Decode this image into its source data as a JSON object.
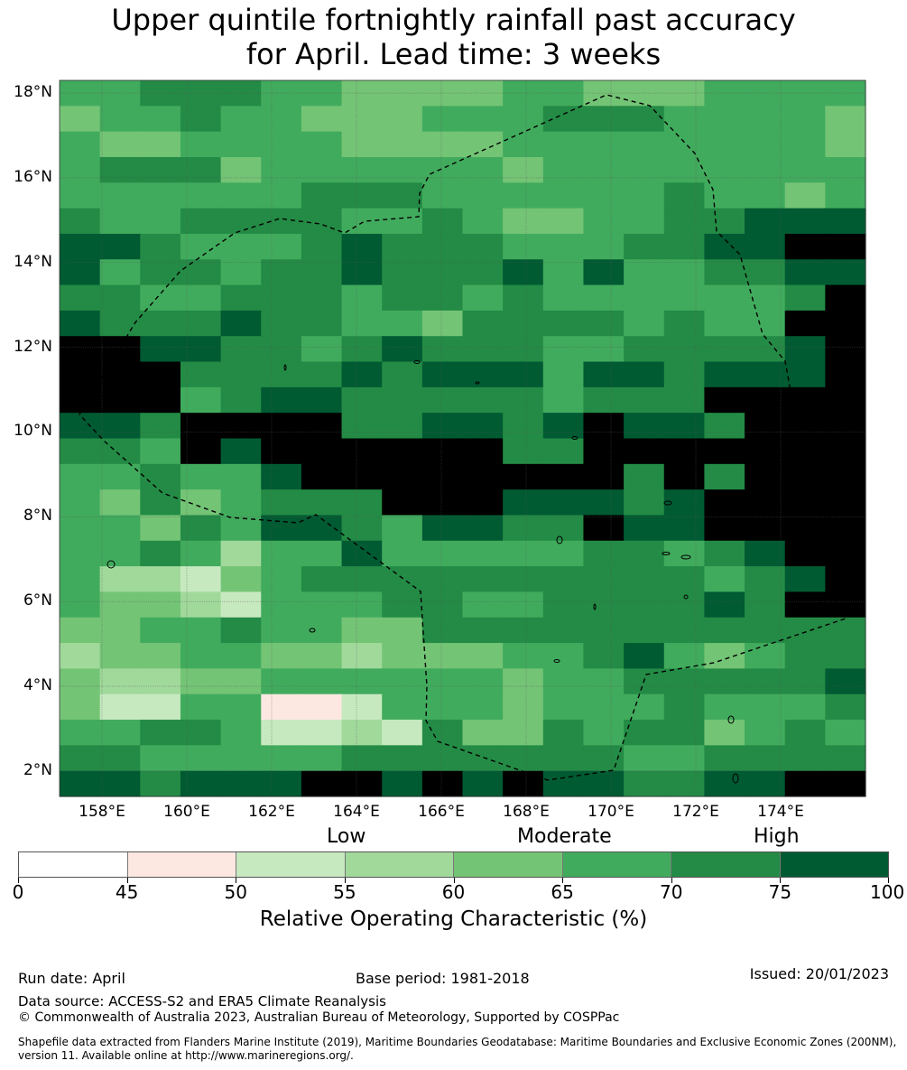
{
  "title": {
    "line1": "Upper quintile fortnightly rainfall past accuracy",
    "line2": "for April. Lead time: 3 weeks"
  },
  "map": {
    "lat_labels": [
      "18°N",
      "16°N",
      "14°N",
      "12°N",
      "10°N",
      "8°N",
      "6°N",
      "4°N",
      "2°N"
    ],
    "lon_labels": [
      "158°E",
      "160°E",
      "162°E",
      "164°E",
      "166°E",
      "168°E",
      "170°E",
      "172°E",
      "174°E"
    ],
    "lat_range": [
      1.4,
      18.3
    ],
    "lon_range": [
      157.0,
      176.0
    ],
    "grid_rows": [
      "55666554444554445555",
      "45565544455566655554",
      "54455554444555555554",
      "56664555555455555555",
      "55555566655555565545",
      "65566665565445566777",
      "77655567666555667788",
      "75665667666757556677",
      "66556665665655555568",
      "76667665546666565588",
      "88776656766655666678",
      "88866667677757767778",
      "88856776666656668888",
      "77688886677678776888",
      "66587888888668888888",
      "55655788888888686888",
      "54645666888777678888",
      "55465776577668778888",
      "55653557555556656788",
      "53324566666666665678",
      "54432555665566667688",
      "44556554466666666666",
      "34455443444556754566",
      "43344555555455666667",
      "42255112555455565556",
      "55665223264465664565",
      "66555556666666556666",
      "77677788787877667788"
    ]
  },
  "categories": {
    "low": "Low",
    "moderate": "Moderate",
    "high": "High"
  },
  "colorbar": {
    "ticks": [
      "0",
      "45",
      "50",
      "55",
      "60",
      "65",
      "70",
      "75",
      "100"
    ],
    "colors": [
      "#ffffff",
      "#fde8e1",
      "#c7e9c0",
      "#a1d99b",
      "#74c476",
      "#41ab5d",
      "#238b45",
      "#005a32"
    ],
    "label": "Relative Operating Characteristic (%)"
  },
  "footer": {
    "run_date": "Run date: April",
    "base_period": "Base period: 1981-2018",
    "issued": "Issued: 20/01/2023",
    "data_source": "Data source: ACCESS-S2 and ERA5 Climate Reanalysis",
    "copyright": "© Commonwealth of Australia 2023, Australian Bureau of Meteorology, Supported by COSPPac",
    "shapefile_line1": "Shapefile data extracted from Flanders Marine Institute (2019), Maritime Boundaries Geodatabase: Maritime Boundaries and Exclusive Economic Zones (200NM),",
    "shapefile_line2": "version 11. Available online at http://www.marineregions.org/."
  }
}
